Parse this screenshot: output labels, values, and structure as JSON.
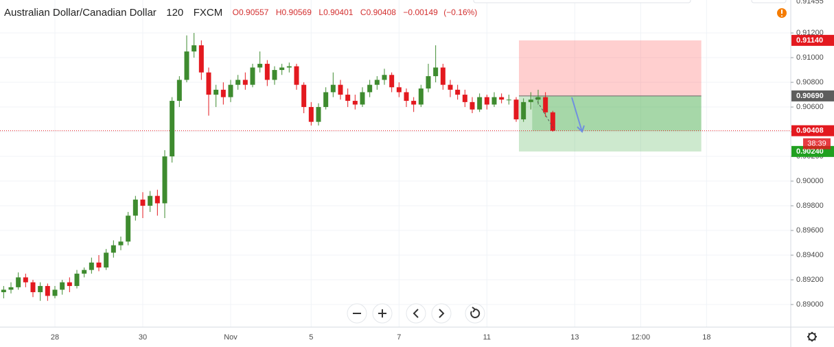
{
  "header": {
    "symbol": "Australian Dollar/Canadian Dollar",
    "interval": "120",
    "source": "FXCM",
    "ohlc": [
      {
        "label": "O",
        "value": 0.90557
      },
      {
        "label": "H",
        "value": 0.90569
      },
      {
        "label": "L",
        "value": 0.90401
      },
      {
        "label": "C",
        "value": 0.90408
      }
    ],
    "change": "−0.00149",
    "change_pct": "(−0.16%)"
  },
  "chart_data": {
    "type": "candlestick",
    "categories": [
      null,
      null,
      null,
      null,
      null,
      null,
      null,
      "28",
      null,
      null,
      null,
      null,
      null,
      null,
      null,
      null,
      null,
      null,
      null,
      "30",
      null,
      null,
      null,
      null,
      null,
      null,
      null,
      null,
      null,
      null,
      null,
      "Nov",
      null,
      null,
      null,
      null,
      null,
      null,
      null,
      null,
      null,
      null,
      "5",
      null,
      null,
      null,
      null,
      null,
      null,
      null,
      null,
      null,
      null,
      null,
      "7",
      null,
      null,
      null,
      null,
      null,
      null,
      null,
      null,
      null,
      null,
      null,
      "11",
      null,
      null,
      null,
      null,
      null,
      null,
      null,
      null,
      null,
      null,
      null,
      "13",
      null,
      null,
      null,
      null,
      null,
      null,
      null,
      null,
      "12:00",
      null,
      null,
      null,
      null,
      null,
      null,
      null,
      null,
      "18",
      null,
      null,
      null,
      null,
      null,
      null,
      null,
      null,
      null,
      null,
      null
    ],
    "open": [
      0.891,
      0.8912,
      0.8914,
      0.8922,
      0.8918,
      0.891,
      0.8915,
      0.8907,
      0.8912,
      0.8918,
      0.8915,
      0.8925,
      0.8928,
      0.8934,
      0.893,
      0.8942,
      0.8948,
      0.8951,
      0.8972,
      0.8985,
      0.898,
      0.8988,
      0.8982,
      0.902,
      0.9065,
      0.9082,
      0.9105,
      0.911,
      0.9088,
      0.907,
      0.9074,
      0.9068,
      0.9078,
      0.9082,
      0.9078,
      0.9092,
      0.9095,
      0.9082,
      0.909,
      0.9092,
      0.9093,
      0.9078,
      0.906,
      0.9048,
      0.906,
      0.9072,
      0.9078,
      0.907,
      0.9065,
      0.9062,
      0.9072,
      0.9078,
      0.9082,
      0.9086,
      0.9076,
      0.9072,
      0.9065,
      0.9062,
      0.9075,
      0.9085,
      0.9092,
      0.9078,
      0.9074,
      0.907,
      0.9064,
      0.9058,
      0.9068,
      0.9062,
      0.9068,
      0.9066,
      0.9066,
      0.905,
      0.9064,
      0.9066,
      0.9068,
      0.90557,
      null,
      null,
      null,
      null,
      null,
      null,
      null,
      null,
      null,
      null,
      null,
      null,
      null,
      null,
      null,
      null,
      null,
      null,
      null,
      null,
      null,
      null,
      null,
      null,
      null,
      null,
      null,
      null,
      null,
      null,
      null,
      null
    ],
    "high": [
      0.8915,
      0.8918,
      0.8926,
      0.8925,
      0.892,
      0.8918,
      0.8917,
      0.8915,
      0.892,
      0.8922,
      0.8928,
      0.893,
      0.8938,
      0.894,
      0.8945,
      0.8952,
      0.8955,
      0.8975,
      0.8988,
      0.8991,
      0.8992,
      0.8993,
      0.9025,
      0.9068,
      0.9085,
      0.9118,
      0.912,
      0.9114,
      0.9092,
      0.9078,
      0.908,
      0.9082,
      0.9086,
      0.9088,
      0.9095,
      0.9105,
      0.9098,
      0.9093,
      0.9095,
      0.9096,
      0.9095,
      0.908,
      0.9064,
      0.9063,
      0.9076,
      0.9088,
      0.9082,
      0.9075,
      0.907,
      0.9076,
      0.9082,
      0.9085,
      0.9091,
      0.9088,
      0.908,
      0.9075,
      0.9068,
      0.9078,
      0.9095,
      0.911,
      0.9095,
      0.9082,
      0.9078,
      0.9074,
      0.9068,
      0.9071,
      0.907,
      0.9072,
      0.9071,
      0.907,
      0.9068,
      0.9067,
      0.9072,
      0.9074,
      0.9072,
      0.90569,
      null,
      null,
      null,
      null,
      null,
      null,
      null,
      null,
      null,
      null,
      null,
      null,
      null,
      null,
      null,
      null,
      null,
      null,
      null,
      null,
      null,
      null,
      null,
      null,
      null,
      null,
      null,
      null,
      null,
      null,
      null,
      null
    ],
    "low": [
      0.8905,
      0.8909,
      0.8912,
      0.8914,
      0.8906,
      0.8903,
      0.8903,
      0.8905,
      0.8908,
      0.891,
      0.8913,
      0.8922,
      0.8925,
      0.8927,
      0.8928,
      0.8938,
      0.8944,
      0.8948,
      0.8968,
      0.897,
      0.8975,
      0.8972,
      0.897,
      0.9015,
      0.906,
      0.908,
      0.91,
      0.9082,
      0.9053,
      0.906,
      0.9062,
      0.9064,
      0.9074,
      0.9074,
      0.9076,
      0.9088,
      0.9077,
      0.9078,
      0.9086,
      0.9088,
      0.9074,
      0.9055,
      0.9045,
      0.9045,
      0.9058,
      0.9068,
      0.9066,
      0.906,
      0.9058,
      0.906,
      0.9068,
      0.9074,
      0.9078,
      0.9072,
      0.9068,
      0.906,
      0.9056,
      0.906,
      0.9072,
      0.908,
      0.9074,
      0.9068,
      0.9066,
      0.906,
      0.9055,
      0.9056,
      0.9058,
      0.906,
      0.9063,
      0.9062,
      0.9048,
      0.9048,
      0.9058,
      0.9062,
      0.9052,
      0.90401,
      null,
      null,
      null,
      null,
      null,
      null,
      null,
      null,
      null,
      null,
      null,
      null,
      null,
      null,
      null,
      null,
      null,
      null,
      null,
      null,
      null,
      null,
      null,
      null,
      null,
      null,
      null,
      null,
      null,
      null,
      null,
      null
    ],
    "close": [
      0.8912,
      0.8914,
      0.8922,
      0.8918,
      0.891,
      0.8915,
      0.8907,
      0.8912,
      0.8918,
      0.8915,
      0.8925,
      0.8928,
      0.8934,
      0.893,
      0.8942,
      0.8948,
      0.8951,
      0.8972,
      0.8985,
      0.898,
      0.8988,
      0.8982,
      0.902,
      0.9065,
      0.9082,
      0.9105,
      0.911,
      0.9088,
      0.907,
      0.9074,
      0.9068,
      0.9078,
      0.9082,
      0.9078,
      0.9092,
      0.9095,
      0.9082,
      0.909,
      0.9092,
      0.9093,
      0.9078,
      0.906,
      0.9048,
      0.906,
      0.9072,
      0.9078,
      0.907,
      0.9065,
      0.9062,
      0.9072,
      0.9078,
      0.9082,
      0.9086,
      0.9076,
      0.9072,
      0.9065,
      0.9062,
      0.9075,
      0.9085,
      0.9092,
      0.9078,
      0.9074,
      0.907,
      0.9064,
      0.9058,
      0.9068,
      0.9062,
      0.9068,
      0.9066,
      0.9066,
      0.905,
      0.9064,
      0.9066,
      0.9068,
      0.90557,
      0.90408,
      null,
      null,
      null,
      null,
      null,
      null,
      null,
      null,
      null,
      null,
      null,
      null,
      null,
      null,
      null,
      null,
      null,
      null,
      null,
      null,
      null,
      null,
      null,
      null,
      null,
      null,
      null,
      null,
      null,
      null,
      null,
      null
    ],
    "up_color": "#3e8b2f",
    "down_color": "#e3191f",
    "ylim": [
      0.88817,
      0.91467
    ],
    "yticks": [
      {
        "value": 0.89,
        "label": "0.89000"
      },
      {
        "value": 0.892,
        "label": "0.89200"
      },
      {
        "value": 0.894,
        "label": "0.89400"
      },
      {
        "value": 0.896,
        "label": "0.89600"
      },
      {
        "value": 0.898,
        "label": "0.89800"
      },
      {
        "value": 0.9,
        "label": "0.90000"
      },
      {
        "value": 0.902,
        "label": "0.90200"
      },
      {
        "value": 0.904,
        "label": "0.90400"
      },
      {
        "value": 0.906,
        "label": "0.90600"
      },
      {
        "value": 0.908,
        "label": "0.90800"
      },
      {
        "value": 0.91,
        "label": "0.91000"
      },
      {
        "value": 0.912,
        "label": "0.91200"
      }
    ],
    "top_price": 0.91455,
    "grid": true,
    "last_price": 0.90408,
    "last_price_color": "#e3191f",
    "countdown": "38:39",
    "position": {
      "values": [
        0.9114,
        0.9069,
        0.9024
      ],
      "value_labels": [
        "0.91140",
        "0.90690",
        "0.90240"
      ],
      "colors": [
        "#e3191f",
        "#5d5d5d",
        "#20a020"
      ]
    }
  }
}
